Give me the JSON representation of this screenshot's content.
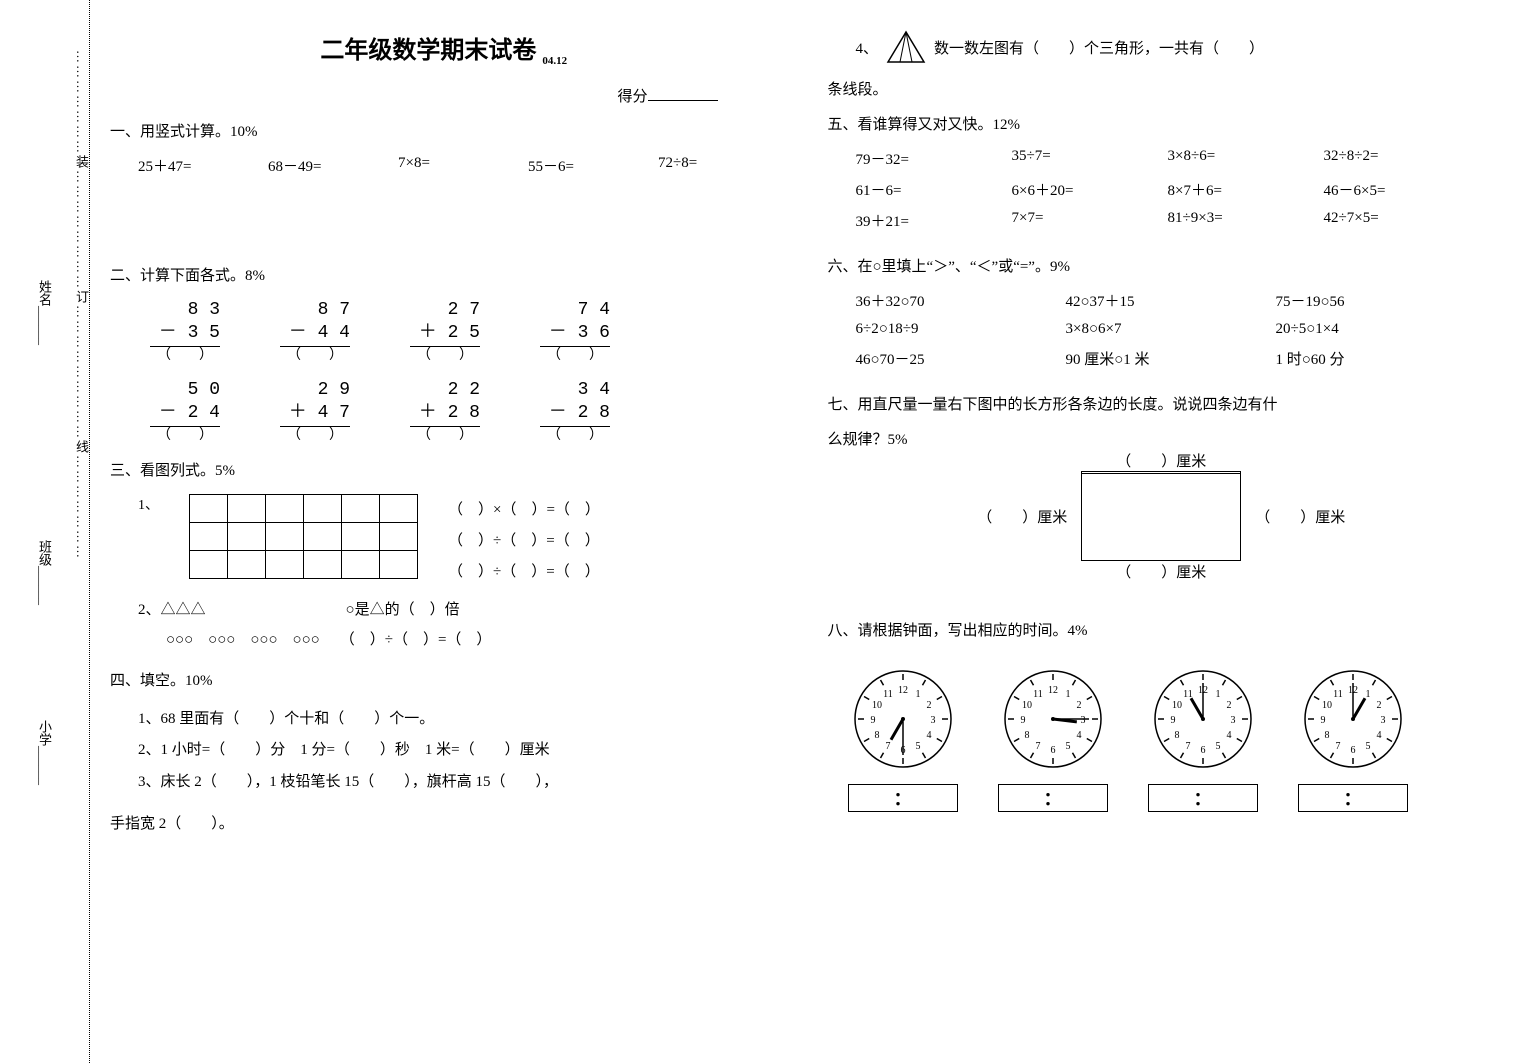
{
  "binding": {
    "school": "小学",
    "class": "班级",
    "name": "姓名",
    "markers": "…………………装……………………订………………………线…………………"
  },
  "title": "二年级数学期末试卷",
  "title_sub": "04.12",
  "score_label": "得分",
  "sec1": {
    "head": "一、用竖式计算。10%",
    "items": [
      "25＋47=",
      "68－49=",
      "7×8=",
      "55－6=",
      "72÷8="
    ]
  },
  "sec2": {
    "head": "二、计算下面各式。8%",
    "row1": [
      {
        "top": "8  3",
        "bot": "－ 3  5"
      },
      {
        "top": "8  7",
        "bot": "－ 4  4"
      },
      {
        "top": "2  7",
        "bot": "＋ 2  5"
      },
      {
        "top": "7  4",
        "bot": "－ 3  6"
      }
    ],
    "row2": [
      {
        "top": "5  0",
        "bot": "－ 2  4"
      },
      {
        "top": "2  9",
        "bot": "＋ 4  7"
      },
      {
        "top": "2  2",
        "bot": "＋ 2  8"
      },
      {
        "top": "3  4",
        "bot": "－ 2  8"
      }
    ],
    "paren": "（　　）"
  },
  "sec3": {
    "head": "三、看图列式。5%",
    "label1": "1、",
    "eqs": [
      "（　）×（　）=（　）",
      "（　）÷（　）=（　）",
      "（　）÷（　）=（　）"
    ],
    "item2_head": "2、△△△",
    "item2_right": "○是△的（　）倍",
    "item2_line2_left": "○○○　○○○　○○○　○○○",
    "item2_line2_right": "（　）÷（　）=（　）"
  },
  "sec4": {
    "head": "四、填空。10%",
    "lines": [
      "1、68 里面有（　　）个十和（　　）个一。",
      "2、1 小时=（　　）分　1 分=（　　）秒　1 米=（　　）厘米",
      "3、床长 2（　　），1 枝铅笔长 15（　　），旗杆高 15（　　），"
    ],
    "tail": "手指宽 2（　　）。",
    "item4_pre": "4、",
    "item4_post": "数一数左图有（　　）个三角形，一共有（　　）",
    "item4_line2": "条线段。"
  },
  "sec5": {
    "head": "五、看谁算得又对又快。12%",
    "rows": [
      [
        "79－32=",
        "35÷7=",
        "3×8÷6=",
        "32÷8÷2="
      ],
      [
        "61－6=",
        "6×6＋20=",
        "8×7＋6=",
        "46－6×5="
      ],
      [
        "39＋21=",
        "7×7=",
        "81÷9×3=",
        "42÷7×5="
      ]
    ]
  },
  "sec6": {
    "head": "六、在○里填上“＞”、“＜”或“=”。9%",
    "rows": [
      [
        "36＋32○70",
        "42○37＋15",
        "75－19○56"
      ],
      [
        "6÷2○18÷9",
        "3×8○6×7",
        "20÷5○1×4"
      ],
      [
        "46○70－25",
        "90 厘米○1 米",
        "1 时○60 分"
      ]
    ]
  },
  "sec7": {
    "head": "七、用直尺量一量右下图中的长方形各条边的长度。说说四条边有什",
    "head2": "么规律？5%",
    "top_label": "（　　）厘米",
    "side_label_l": "（　　）厘米",
    "side_label_r": "（　　）厘米",
    "bot_label": "（　　）厘米"
  },
  "sec8": {
    "head": "八、请根据钟面，写出相应的时间。4%",
    "clocks": [
      {
        "hour_angle": 210,
        "min_angle": 180
      },
      {
        "hour_angle": 97,
        "min_angle": 90
      },
      {
        "hour_angle": 330,
        "min_angle": 0
      },
      {
        "hour_angle": 30,
        "min_angle": 0
      }
    ],
    "box_text": "："
  },
  "colors": {
    "bg": "#ffffff",
    "fg": "#000000"
  }
}
